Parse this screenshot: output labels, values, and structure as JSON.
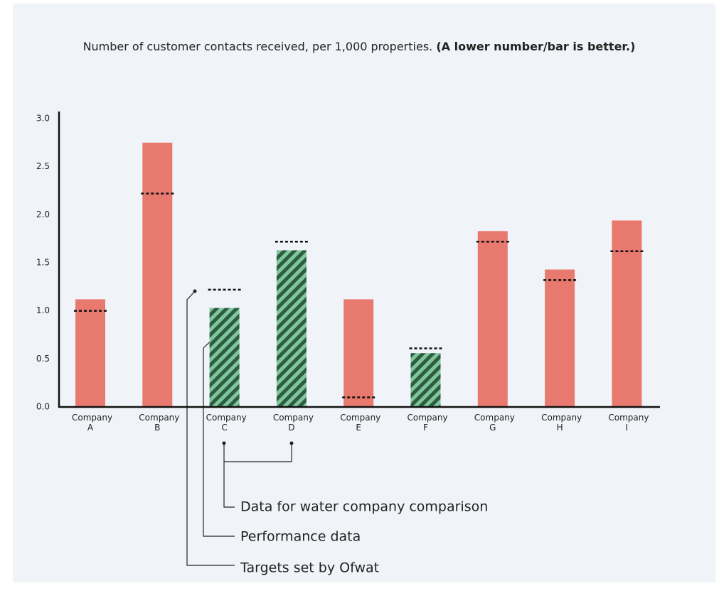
{
  "chart_data": {
    "type": "bar",
    "title": "Number of customer contacts received, per 1,000 properties.",
    "title_note": "(A lower number/bar is better.)",
    "categories": [
      "Company A",
      "Company B",
      "Company C",
      "Company D",
      "Company E",
      "Company F",
      "Company G",
      "Company H",
      "Company I"
    ],
    "series": [
      {
        "name": "Performance data",
        "color": "#e8796f",
        "values": [
          1.12,
          2.75,
          1.03,
          1.63,
          1.12,
          0.56,
          1.83,
          1.43,
          1.94
        ]
      },
      {
        "name": "Targets set by Ofwat",
        "color": "#111111",
        "values": [
          1.0,
          2.22,
          1.22,
          1.72,
          0.1,
          0.61,
          1.72,
          1.32,
          1.62
        ]
      }
    ],
    "comparison_label": "Data for water company comparison",
    "hatched": [
      false,
      false,
      true,
      true,
      false,
      true,
      false,
      false,
      false
    ],
    "hatch_colors": [
      "#7fc79b",
      "#2e5c43"
    ],
    "ylim": [
      0,
      3
    ],
    "yticks": [
      {
        "value": 0,
        "label": "0.0"
      },
      0.5,
      {
        "value": 1,
        "label": "1.0"
      },
      1.5,
      {
        "value": 2,
        "label": "2.0"
      },
      2.5,
      {
        "value": 3,
        "label": "3.0"
      }
    ]
  }
}
